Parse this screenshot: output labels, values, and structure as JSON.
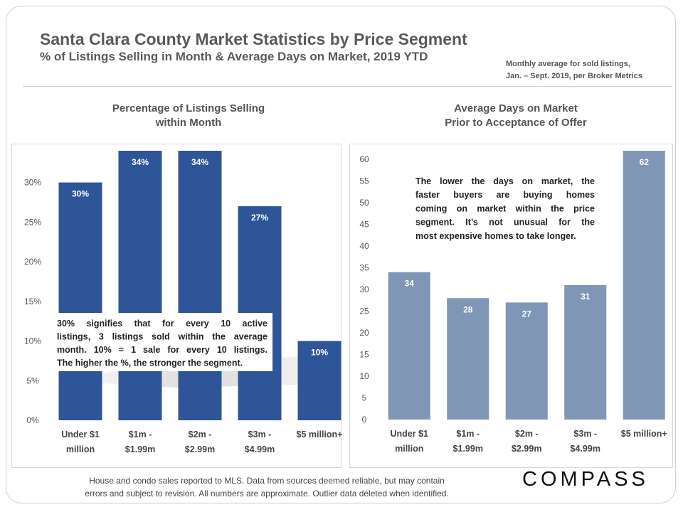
{
  "header": {
    "title": "Santa Clara County Market Statistics by Price Segment",
    "subtitle": "% of Listings Selling in Month & Average Days on Market, 2019 YTD",
    "note_line1": "Monthly average for sold listings,",
    "note_line2": "Jan. – Sept. 2019, per Broker Metrics"
  },
  "chart_titles": {
    "left_line1": "Percentage of Listings Selling",
    "left_line2": "within Month",
    "right_line1": "Average Days on Market",
    "right_line2": "Prior to Acceptance of Offer"
  },
  "chart_data": [
    {
      "type": "bar",
      "title": "Percentage of Listings Selling within Month",
      "categories": [
        [
          "Under $1",
          "million"
        ],
        [
          "$1m -",
          "$1.99m"
        ],
        [
          "$2m -",
          "$2.99m"
        ],
        [
          "$3m -",
          "$4.99m"
        ],
        [
          "$5 million+"
        ]
      ],
      "values": [
        30,
        34,
        34,
        27,
        10
      ],
      "data_labels": [
        "30%",
        "34%",
        "34%",
        "27%",
        "10%"
      ],
      "ylim": [
        0,
        35
      ],
      "yticks": [
        0,
        5,
        10,
        15,
        20,
        25,
        30
      ],
      "ytick_labels": [
        "0%",
        "5%",
        "10%",
        "15%",
        "20%",
        "25%",
        "30%"
      ],
      "color": "#2e5597",
      "annotation": [
        "30% signifies that for every 10 active",
        "listings, 3 listings sold within the average",
        "month. 10% = 1 sale for every 10 listings.",
        "The higher the %, the stronger the segment."
      ]
    },
    {
      "type": "bar",
      "title": "Average Days on Market Prior to Acceptance of Offer",
      "categories": [
        [
          "Under $1",
          "million"
        ],
        [
          "$1m -",
          "$1.99m"
        ],
        [
          "$2m -",
          "$2.99m"
        ],
        [
          "$3m -",
          "$4.99m"
        ],
        [
          "$5 million+"
        ]
      ],
      "values": [
        34,
        28,
        27,
        31,
        62
      ],
      "data_labels": [
        "34",
        "28",
        "27",
        "31",
        "62"
      ],
      "ylim": [
        0,
        62
      ],
      "yticks": [
        0,
        5,
        10,
        15,
        20,
        25,
        30,
        35,
        40,
        45,
        50,
        55,
        60
      ],
      "ytick_labels": [
        "0",
        "5",
        "10",
        "15",
        "20",
        "25",
        "30",
        "35",
        "40",
        "45",
        "50",
        "55",
        "60"
      ],
      "color": "#7f96b6",
      "annotation": [
        "The lower the days on market, the",
        "faster buyers are buying homes",
        "coming on market within the price",
        "segment. It’s not unusual for the",
        "most expensive homes to take longer."
      ]
    }
  ],
  "footer": {
    "line1": "House and condo sales reported to MLS. Data from sources deemed reliable,  but may contain",
    "line2": "errors and subject to revision. All  numbers are approximate. Outlier data deleted when identified."
  },
  "logo": "COMPASS"
}
